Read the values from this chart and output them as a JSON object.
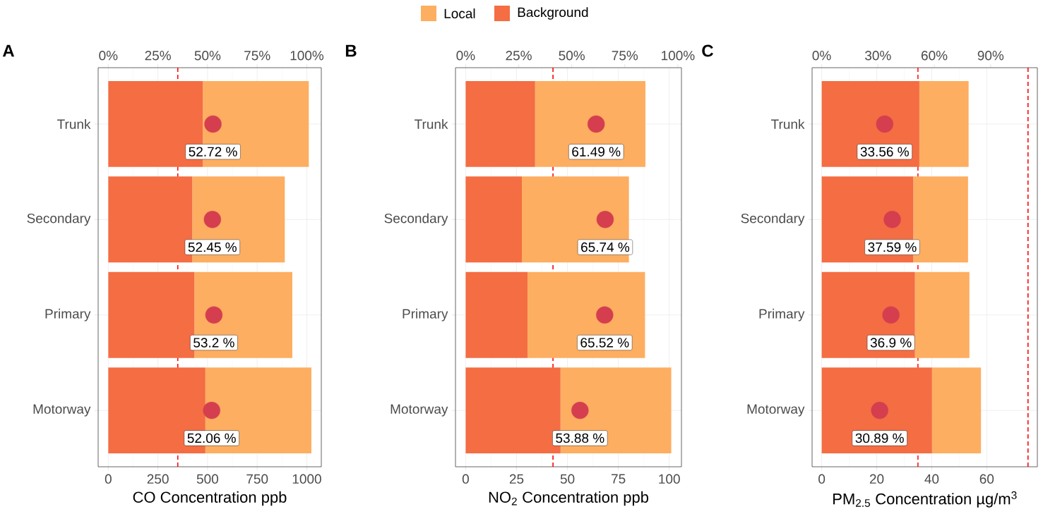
{
  "chart_data": [
    {
      "type": "bar",
      "orientation": "horizontal",
      "stacked": true,
      "title": "A",
      "categories": [
        "Trunk",
        "Secondary",
        "Primary",
        "Motorway"
      ],
      "xlabel": "CO Concentration ppb",
      "xlim": [
        -51,
        1073
      ],
      "xticks": [
        0,
        250,
        500,
        750,
        1000
      ],
      "x2lim": [
        -5.1,
        107.3
      ],
      "x2ticks": [
        {
          "value": 0,
          "label": "0%"
        },
        {
          "value": 25,
          "label": "25%"
        },
        {
          "value": 50,
          "label": "50%"
        },
        {
          "value": 75,
          "label": "75%"
        },
        {
          "value": 100,
          "label": "100%"
        }
      ],
      "grid": true,
      "series": [
        {
          "color": "#f46d43",
          "values": [
            476,
            423,
            434,
            489
          ]
        },
        {
          "color": "#fdae61",
          "values": [
            534,
            466,
            493,
            534
          ]
        },
        {
          "type": "scatter",
          "axis": "x2",
          "color": "#d53e4f",
          "values": [
            52.72,
            52.45,
            53.2,
            52.06
          ],
          "value_labels": [
            "52.72 %",
            "52.45 %",
            "53.2 %",
            "52.06 %"
          ]
        }
      ],
      "ref_lines": [
        {
          "axis": "x",
          "value": 350,
          "color": "#ff0000",
          "line_style": "dashed"
        }
      ]
    },
    {
      "type": "bar",
      "orientation": "horizontal",
      "stacked": true,
      "title": "B",
      "categories": [
        "Trunk",
        "Secondary",
        "Primary",
        "Motorway"
      ],
      "xlabel": "NO$_{2}$ Concentration ppb",
      "xlim": [
        -5,
        106
      ],
      "xticks": [
        0,
        25,
        50,
        75,
        100
      ],
      "x2lim": [
        -4.8,
        101.7
      ],
      "x2ticks": [
        {
          "value": 0,
          "label": "0%"
        },
        {
          "value": 25,
          "label": "25%"
        },
        {
          "value": 50,
          "label": "50%"
        },
        {
          "value": 75,
          "label": "75%"
        },
        {
          "value": 100,
          "label": "100%"
        }
      ],
      "grid": true,
      "legend": "top",
      "series": [
        {
          "name": "Background",
          "color": "#f46d43",
          "values": [
            34.1,
            27.6,
            30.4,
            46.6
          ]
        },
        {
          "name": "Local",
          "color": "#fdae61",
          "values": [
            54.2,
            52.6,
            57.7,
            54.4
          ]
        },
        {
          "type": "scatter",
          "axis": "x2",
          "color": "#d53e4f",
          "values": [
            61.49,
            65.74,
            65.52,
            53.88
          ],
          "value_labels": [
            "61.49 %",
            "65.74 %",
            "65.52 %",
            "53.88 %"
          ]
        }
      ],
      "ref_lines": [
        {
          "axis": "x",
          "value": 42.9,
          "color": "#ff0000",
          "line_style": "dashed"
        }
      ]
    },
    {
      "type": "bar",
      "orientation": "horizontal",
      "stacked": true,
      "title": "C",
      "categories": [
        "Trunk",
        "Secondary",
        "Primary",
        "Motorway"
      ],
      "xlabel": "PM$_{2.5}$ Concentration µg/m$^{3}$",
      "xlim": [
        -3.5,
        78.4
      ],
      "xticks": [
        0,
        20,
        40,
        60
      ],
      "x2lim": [
        -5.1,
        114.9
      ],
      "x2ticks": [
        {
          "value": 0,
          "label": "0%"
        },
        {
          "value": 30,
          "label": "30%"
        },
        {
          "value": 60,
          "label": "60%"
        },
        {
          "value": 90,
          "label": "90%"
        }
      ],
      "grid": true,
      "series": [
        {
          "color": "#f46d43",
          "values": [
            35.5,
            33.3,
            33.9,
            40.1
          ]
        },
        {
          "color": "#fdae61",
          "values": [
            17.9,
            19.9,
            19.8,
            17.8
          ]
        },
        {
          "type": "scatter",
          "axis": "x2",
          "color": "#d53e4f",
          "values": [
            33.56,
            37.59,
            36.9,
            30.89
          ],
          "value_labels": [
            "33.56 %",
            "37.59 %",
            "36.9 %",
            "30.89 %"
          ]
        }
      ],
      "ref_lines": [
        {
          "axis": "x",
          "value": 35,
          "color": "#ff0000",
          "line_style": "dashed"
        },
        {
          "axis": "x",
          "value": 75,
          "color": "#ff0000",
          "line_style": "dashed"
        }
      ]
    }
  ]
}
